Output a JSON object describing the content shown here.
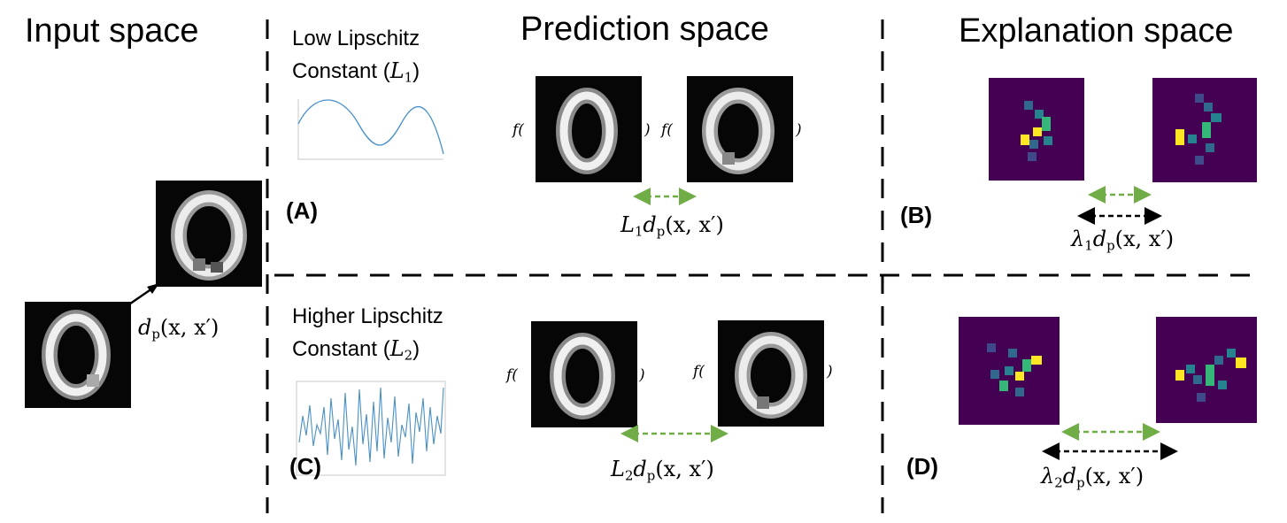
{
  "headers": {
    "input": "Input space",
    "prediction": "Prediction space",
    "explanation": "Explanation space"
  },
  "captions": {
    "low_line1": "Low Lipschitz",
    "low_line2": "Constant",
    "low_const": "L",
    "low_const_sub": "1",
    "high_line1": "Higher Lipschitz",
    "high_line2": "Constant",
    "high_const": "L",
    "high_const_sub": "2"
  },
  "panels": {
    "a": "(A)",
    "b": "(B)",
    "c": "(C)",
    "d": "(D)"
  },
  "math": {
    "f_open": "f(",
    "close": ")",
    "input_dist": "d",
    "input_dist_sub": "p",
    "dist_args": "(x, x′)",
    "L1": "L",
    "L1_sub": "1",
    "L2": "L",
    "L2_sub": "2",
    "lam1": "λ",
    "lam1_sub": "1",
    "lam2": "λ",
    "lam2_sub": "2"
  },
  "colors": {
    "green_arrow": "#70ad47",
    "black_arrow": "#000000",
    "signal_line": "#4a90c8",
    "heatmap_bg": "#440154",
    "heatmap_mid": "#31688e",
    "heatmap_teal": "#26828e",
    "heatmap_green": "#35b779",
    "heatmap_yellow": "#fde725"
  }
}
